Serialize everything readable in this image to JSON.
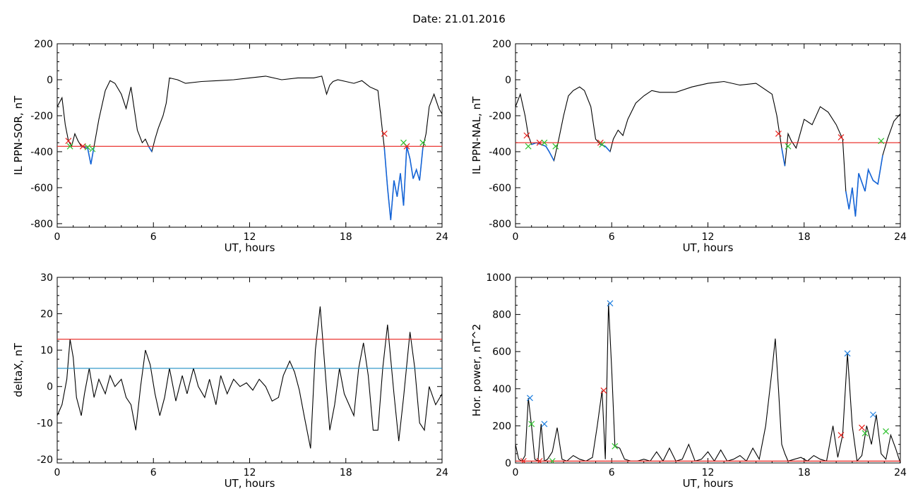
{
  "figure_title": "Date:  21.01.2016",
  "colors": {
    "trace": "#000000",
    "threshold_red": "#e8211c",
    "threshold_blue": "#1f8fc4",
    "below_blue": "#1565d8",
    "marker_red": "#e8211c",
    "marker_green": "#2ec22e",
    "marker_blue": "#1f7fe0"
  },
  "chart_data": [
    {
      "type": "line",
      "title": "",
      "xlabel": "UT, hours",
      "ylabel": "IL PPN-SOR, nT",
      "xlim": [
        0,
        24
      ],
      "ylim": [
        -820,
        200
      ],
      "xticks": [
        "0",
        "6",
        "12",
        "18",
        "24"
      ],
      "yticks": [
        "-800",
        "-600",
        "-400",
        "-200",
        "0",
        "200"
      ],
      "grid": false,
      "threshold_lines": [
        {
          "color": "red",
          "y": -370
        }
      ],
      "below_threshold_color": "blue",
      "series": [
        {
          "x": [
            0,
            0.3,
            0.5,
            0.7,
            0.9,
            1.1,
            1.3,
            1.5,
            1.7,
            1.9,
            2.1,
            2.3,
            2.6,
            3.0,
            3.3,
            3.6,
            4.0,
            4.3,
            4.6,
            5.0,
            5.3,
            5.5,
            5.7,
            5.9,
            6.1,
            6.3,
            6.6,
            6.8,
            7.0,
            7.5,
            8,
            9,
            10,
            11,
            12,
            13,
            14,
            15,
            16,
            16.5,
            16.8,
            17.0,
            17.2,
            17.5,
            18,
            18.5,
            19,
            19.5,
            20,
            20.4,
            20.6,
            20.8,
            21.0,
            21.2,
            21.4,
            21.6,
            21.8,
            22.0,
            22.2,
            22.4,
            22.6,
            22.8,
            23.0,
            23.2,
            23.5,
            23.8,
            24
          ],
          "values": [
            -150,
            -100,
            -250,
            -340,
            -370,
            -300,
            -340,
            -370,
            -375,
            -380,
            -470,
            -370,
            -220,
            -60,
            -5,
            -20,
            -80,
            -160,
            -40,
            -280,
            -350,
            -330,
            -370,
            -400,
            -330,
            -270,
            -200,
            -130,
            10,
            0,
            -20,
            -10,
            -5,
            0,
            10,
            20,
            0,
            10,
            10,
            20,
            -80,
            -30,
            -10,
            0,
            -10,
            -20,
            -5,
            -40,
            -60,
            -380,
            -600,
            -780,
            -560,
            -650,
            -520,
            -700,
            -370,
            -440,
            -550,
            -500,
            -560,
            -380,
            -300,
            -150,
            -80,
            -160,
            -190
          ]
        }
      ],
      "markers": [
        {
          "color": "red",
          "x": [
            0.7,
            1.6,
            20.4,
            21.8
          ],
          "y": [
            -340,
            -370,
            -300,
            -370
          ]
        },
        {
          "color": "green",
          "x": [
            0.8,
            1.9,
            2.2,
            21.6,
            22.8
          ],
          "y": [
            -370,
            -375,
            -385,
            -350,
            -350
          ]
        }
      ]
    },
    {
      "type": "line",
      "title": "",
      "xlabel": "UT, hours",
      "ylabel": "IL PPN-NAL, nT",
      "xlim": [
        0,
        24
      ],
      "ylim": [
        -820,
        200
      ],
      "xticks": [
        "0",
        "6",
        "12",
        "18",
        "24"
      ],
      "yticks": [
        "-800",
        "-600",
        "-400",
        "-200",
        "0",
        "200"
      ],
      "grid": false,
      "threshold_lines": [
        {
          "color": "red",
          "y": -350
        }
      ],
      "below_threshold_color": "blue",
      "series": [
        {
          "x": [
            0,
            0.3,
            0.6,
            0.8,
            1.0,
            1.3,
            1.6,
            1.9,
            2.1,
            2.4,
            2.7,
            3.0,
            3.3,
            3.6,
            4.0,
            4.3,
            4.7,
            5.0,
            5.3,
            5.6,
            5.9,
            6.1,
            6.4,
            6.7,
            7.0,
            7.5,
            8,
            8.5,
            9,
            10,
            11,
            12,
            13,
            14,
            15,
            16,
            16.3,
            16.6,
            16.8,
            17.0,
            17.2,
            17.5,
            18,
            18.5,
            19,
            19.5,
            20,
            20.4,
            20.6,
            20.8,
            21.0,
            21.2,
            21.4,
            21.6,
            21.8,
            22.0,
            22.3,
            22.6,
            22.9,
            23.2,
            23.6,
            24
          ],
          "values": [
            -150,
            -80,
            -200,
            -310,
            -360,
            -350,
            -360,
            -370,
            -400,
            -450,
            -330,
            -200,
            -90,
            -60,
            -40,
            -60,
            -150,
            -330,
            -360,
            -370,
            -400,
            -330,
            -280,
            -310,
            -220,
            -130,
            -90,
            -60,
            -70,
            -70,
            -40,
            -20,
            -10,
            -30,
            -20,
            -80,
            -200,
            -380,
            -480,
            -300,
            -340,
            -380,
            -220,
            -250,
            -150,
            -180,
            -250,
            -330,
            -620,
            -720,
            -600,
            -760,
            -520,
            -570,
            -620,
            -500,
            -560,
            -580,
            -420,
            -330,
            -230,
            -190
          ]
        }
      ],
      "markers": [
        {
          "color": "red",
          "x": [
            0.7,
            1.5,
            5.3,
            16.4,
            20.3
          ],
          "y": [
            -310,
            -350,
            -350,
            -300,
            -320
          ]
        },
        {
          "color": "green",
          "x": [
            0.8,
            1.8,
            2.5,
            5.4,
            17.0,
            22.8
          ],
          "y": [
            -370,
            -350,
            -370,
            -360,
            -370,
            -340
          ]
        }
      ]
    },
    {
      "type": "line",
      "title": "",
      "xlabel": "UT, hours",
      "ylabel": "deltaX, nT",
      "xlim": [
        0,
        24
      ],
      "ylim": [
        -21,
        30
      ],
      "xticks": [
        "0",
        "6",
        "12",
        "18",
        "24"
      ],
      "yticks": [
        "-20",
        "-10",
        "0",
        "10",
        "20",
        "30"
      ],
      "grid": false,
      "threshold_lines": [
        {
          "color": "red",
          "y": 13
        },
        {
          "color": "blue",
          "y": 5
        }
      ],
      "series": [
        {
          "x": [
            0,
            0.3,
            0.6,
            0.8,
            1.0,
            1.2,
            1.5,
            1.7,
            2.0,
            2.3,
            2.6,
            3.0,
            3.3,
            3.6,
            4.0,
            4.3,
            4.6,
            4.9,
            5.2,
            5.5,
            5.8,
            6.1,
            6.4,
            6.7,
            7.0,
            7.4,
            7.8,
            8.1,
            8.5,
            8.8,
            9.2,
            9.5,
            9.9,
            10.2,
            10.6,
            11.0,
            11.4,
            11.8,
            12.2,
            12.6,
            13.0,
            13.4,
            13.8,
            14.1,
            14.5,
            14.8,
            15.1,
            15.4,
            15.8,
            16.1,
            16.4,
            16.7,
            17.0,
            17.3,
            17.6,
            17.9,
            18.2,
            18.5,
            18.8,
            19.1,
            19.4,
            19.7,
            20.0,
            20.3,
            20.6,
            21.0,
            21.3,
            21.6,
            22.0,
            22.3,
            22.6,
            22.9,
            23.2,
            23.6,
            24
          ],
          "values": [
            -8,
            -5,
            2,
            13,
            8,
            -3,
            -8,
            -2,
            5,
            -3,
            2,
            -2,
            3,
            0,
            2,
            -3,
            -5,
            -12,
            0,
            10,
            6,
            -2,
            -8,
            -3,
            5,
            -4,
            3,
            -2,
            5,
            0,
            -3,
            2,
            -5,
            3,
            -2,
            2,
            0,
            1,
            -1,
            2,
            0,
            -4,
            -3,
            3,
            7,
            4,
            -1,
            -8,
            -17,
            10,
            22,
            5,
            -12,
            -5,
            5,
            -2,
            -5,
            -8,
            5,
            12,
            3,
            -12,
            -12,
            5,
            17,
            -2,
            -15,
            -3,
            15,
            5,
            -10,
            -12,
            0,
            -5,
            -2
          ]
        }
      ]
    },
    {
      "type": "line",
      "title": "",
      "xlabel": "UT, hours",
      "ylabel": "Hor. power, nT^2",
      "xlim": [
        0,
        24
      ],
      "ylim": [
        0,
        1000
      ],
      "xticks": [
        "0",
        "6",
        "12",
        "18",
        "24"
      ],
      "yticks": [
        "0",
        "200",
        "400",
        "600",
        "800",
        "1000"
      ],
      "grid": false,
      "threshold_lines": [
        {
          "color": "red",
          "y": 10
        }
      ],
      "series": [
        {
          "x": [
            0,
            0.2,
            0.4,
            0.6,
            0.8,
            1.0,
            1.2,
            1.4,
            1.6,
            1.8,
            2.0,
            2.3,
            2.6,
            2.9,
            3.2,
            3.6,
            4.0,
            4.4,
            4.8,
            5.1,
            5.4,
            5.6,
            5.8,
            6.0,
            6.2,
            6.5,
            6.8,
            7.2,
            7.6,
            8.0,
            8.4,
            8.8,
            9.2,
            9.6,
            10.0,
            10.4,
            10.8,
            11.2,
            11.6,
            12.0,
            12.4,
            12.8,
            13.2,
            13.6,
            14.0,
            14.4,
            14.8,
            15.2,
            15.6,
            16.0,
            16.2,
            16.4,
            16.6,
            16.8,
            17.0,
            17.4,
            17.8,
            18.2,
            18.6,
            19.0,
            19.4,
            19.8,
            20.1,
            20.4,
            20.7,
            21.0,
            21.3,
            21.6,
            21.9,
            22.2,
            22.5,
            22.8,
            23.1,
            23.4,
            23.7,
            24
          ],
          "values": [
            100,
            20,
            10,
            40,
            350,
            200,
            20,
            10,
            210,
            10,
            20,
            60,
            190,
            20,
            10,
            40,
            20,
            10,
            30,
            200,
            390,
            20,
            860,
            500,
            90,
            80,
            20,
            10,
            10,
            20,
            10,
            60,
            10,
            80,
            10,
            20,
            100,
            10,
            20,
            60,
            10,
            70,
            10,
            20,
            40,
            10,
            80,
            20,
            200,
            500,
            670,
            400,
            100,
            50,
            10,
            20,
            30,
            10,
            40,
            20,
            10,
            200,
            30,
            150,
            590,
            200,
            10,
            40,
            200,
            100,
            260,
            50,
            20,
            150,
            80,
            0
          ]
        }
      ],
      "markers": [
        {
          "color": "red",
          "x": [
            0.5,
            1.5,
            5.5,
            20.3,
            21.6
          ],
          "y": [
            10,
            10,
            390,
            150,
            190
          ]
        },
        {
          "color": "green",
          "x": [
            1.0,
            2.3,
            6.2,
            21.8,
            23.1
          ],
          "y": [
            210,
            10,
            90,
            160,
            170
          ]
        },
        {
          "color": "blue",
          "x": [
            0.9,
            1.8,
            5.9,
            20.7,
            22.3
          ],
          "y": [
            350,
            210,
            860,
            590,
            260
          ]
        }
      ]
    }
  ]
}
